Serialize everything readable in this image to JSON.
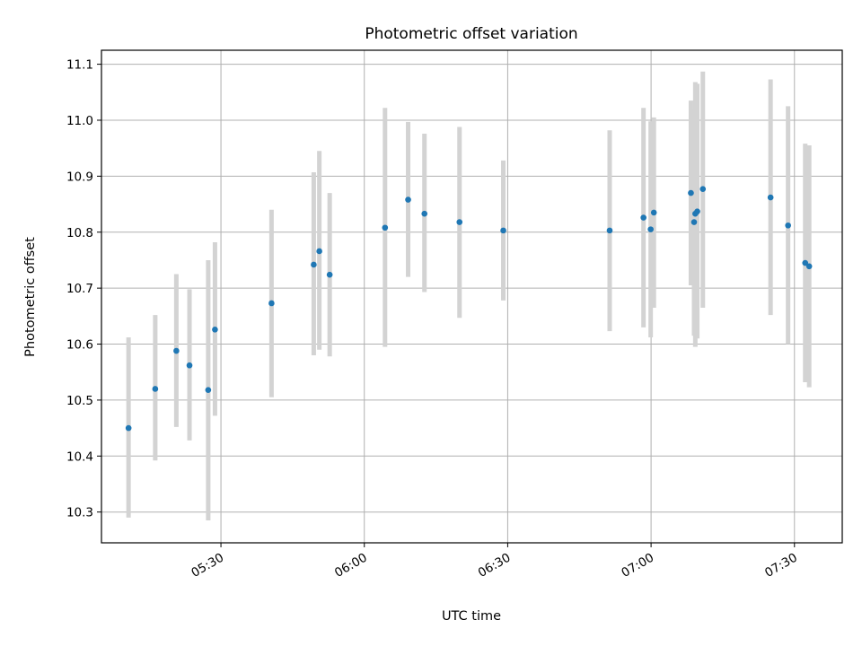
{
  "chart_data": {
    "type": "scatter",
    "title": "Photometric offset variation",
    "xlabel": "UTC time",
    "ylabel": "Photometric offset",
    "x_axis": {
      "kind": "time",
      "range": [
        "05:05",
        "07:40"
      ],
      "ticks": [
        "05:30",
        "06:00",
        "06:30",
        "07:00",
        "07:30"
      ]
    },
    "y_axis": {
      "range": [
        10.245,
        11.125
      ],
      "ticks": [
        "10.3",
        "10.4",
        "10.5",
        "10.6",
        "10.7",
        "10.8",
        "10.9",
        "11.0",
        "11.1"
      ]
    },
    "grid": true,
    "legend": "none",
    "colors": {
      "point": "#1f77b4",
      "errorbar": "#d3d3d3",
      "grid": "#b0b0b0",
      "axes": "#000000"
    },
    "points": [
      {
        "time": "05:10:40",
        "y": 10.45,
        "err_low": 10.29,
        "err_high": 10.612
      },
      {
        "time": "05:16:15",
        "y": 10.52,
        "err_low": 10.392,
        "err_high": 10.652
      },
      {
        "time": "05:20:40",
        "y": 10.588,
        "err_low": 10.452,
        "err_high": 10.725
      },
      {
        "time": "05:23:25",
        "y": 10.562,
        "err_low": 10.428,
        "err_high": 10.698
      },
      {
        "time": "05:27:20",
        "y": 10.518,
        "err_low": 10.285,
        "err_high": 10.75
      },
      {
        "time": "05:28:45",
        "y": 10.626,
        "err_low": 10.472,
        "err_high": 10.782
      },
      {
        "time": "05:40:35",
        "y": 10.673,
        "err_low": 10.505,
        "err_high": 10.84
      },
      {
        "time": "05:49:25",
        "y": 10.742,
        "err_low": 10.58,
        "err_high": 10.907
      },
      {
        "time": "05:50:35",
        "y": 10.766,
        "err_low": 10.59,
        "err_high": 10.945
      },
      {
        "time": "05:52:45",
        "y": 10.724,
        "err_low": 10.578,
        "err_high": 10.87
      },
      {
        "time": "06:04:20",
        "y": 10.808,
        "err_low": 10.595,
        "err_high": 11.022
      },
      {
        "time": "06:09:10",
        "y": 10.858,
        "err_low": 10.72,
        "err_high": 10.997
      },
      {
        "time": "06:12:35",
        "y": 10.833,
        "err_low": 10.693,
        "err_high": 10.976
      },
      {
        "time": "06:19:55",
        "y": 10.818,
        "err_low": 10.647,
        "err_high": 10.988
      },
      {
        "time": "06:29:05",
        "y": 10.803,
        "err_low": 10.678,
        "err_high": 10.928
      },
      {
        "time": "06:51:20",
        "y": 10.803,
        "err_low": 10.623,
        "err_high": 10.982
      },
      {
        "time": "06:58:25",
        "y": 10.826,
        "err_low": 10.63,
        "err_high": 11.022
      },
      {
        "time": "06:59:55",
        "y": 10.805,
        "err_low": 10.612,
        "err_high": 10.998
      },
      {
        "time": "07:00:35",
        "y": 10.835,
        "err_low": 10.665,
        "err_high": 11.005
      },
      {
        "time": "07:08:20",
        "y": 10.87,
        "err_low": 10.705,
        "err_high": 11.035
      },
      {
        "time": "07:09:00",
        "y": 10.818,
        "err_low": 10.615,
        "err_high": 11.02
      },
      {
        "time": "07:09:15",
        "y": 10.833,
        "err_low": 10.595,
        "err_high": 11.068
      },
      {
        "time": "07:09:40",
        "y": 10.837,
        "err_low": 10.61,
        "err_high": 11.065
      },
      {
        "time": "07:10:50",
        "y": 10.877,
        "err_low": 10.665,
        "err_high": 11.087
      },
      {
        "time": "07:25:00",
        "y": 10.862,
        "err_low": 10.652,
        "err_high": 11.073
      },
      {
        "time": "07:28:40",
        "y": 10.812,
        "err_low": 10.6,
        "err_high": 11.025
      },
      {
        "time": "07:32:15",
        "y": 10.745,
        "err_low": 10.532,
        "err_high": 10.958
      },
      {
        "time": "07:33:05",
        "y": 10.739,
        "err_low": 10.523,
        "err_high": 10.955
      }
    ]
  }
}
